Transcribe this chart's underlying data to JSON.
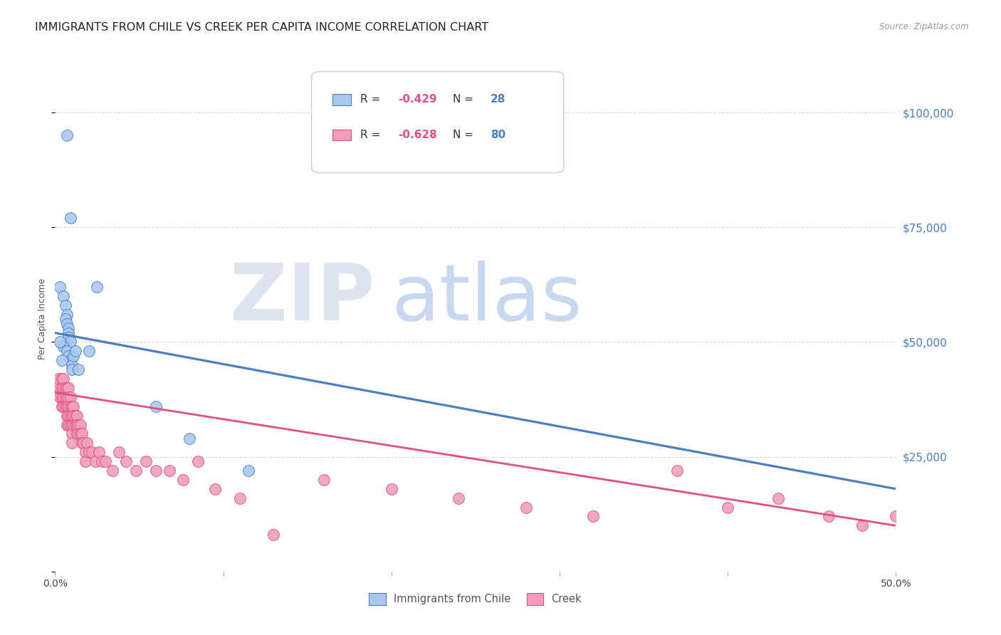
{
  "title": "IMMIGRANTS FROM CHILE VS CREEK PER CAPITA INCOME CORRELATION CHART",
  "source": "Source: ZipAtlas.com",
  "ylabel": "Per Capita Income",
  "xlim": [
    0.0,
    0.5
  ],
  "ylim": [
    0,
    110000
  ],
  "yticks": [
    0,
    25000,
    50000,
    75000,
    100000
  ],
  "ytick_labels": [
    "",
    "$25,000",
    "$50,000",
    "$75,000",
    "$100,000"
  ],
  "background_color": "#ffffff",
  "legend_label1": "Immigrants from Chile",
  "legend_label2": "Creek",
  "blue_color": "#4a7fc1",
  "pink_color": "#e05080",
  "scatter_blue_color": "#aac8ee",
  "scatter_pink_color": "#f0a0b8",
  "blue_scatter_x": [
    0.007,
    0.009,
    0.003,
    0.005,
    0.006,
    0.007,
    0.006,
    0.007,
    0.008,
    0.008,
    0.008,
    0.009,
    0.005,
    0.007,
    0.008,
    0.009,
    0.01,
    0.01,
    0.011,
    0.012,
    0.014,
    0.02,
    0.025,
    0.06,
    0.08,
    0.115,
    0.003,
    0.004
  ],
  "blue_scatter_y": [
    95000,
    77000,
    62000,
    60000,
    58000,
    56000,
    55000,
    54000,
    53000,
    52000,
    51000,
    50000,
    49000,
    48000,
    47000,
    46000,
    45000,
    44000,
    47000,
    48000,
    44000,
    48000,
    62000,
    36000,
    29000,
    22000,
    50000,
    46000
  ],
  "pink_scatter_x": [
    0.002,
    0.003,
    0.003,
    0.004,
    0.004,
    0.004,
    0.004,
    0.005,
    0.005,
    0.005,
    0.005,
    0.006,
    0.006,
    0.006,
    0.007,
    0.007,
    0.007,
    0.007,
    0.007,
    0.008,
    0.008,
    0.008,
    0.008,
    0.008,
    0.009,
    0.009,
    0.009,
    0.009,
    0.01,
    0.01,
    0.01,
    0.01,
    0.01,
    0.011,
    0.011,
    0.011,
    0.012,
    0.012,
    0.013,
    0.013,
    0.013,
    0.014,
    0.014,
    0.015,
    0.015,
    0.016,
    0.016,
    0.017,
    0.018,
    0.018,
    0.019,
    0.02,
    0.022,
    0.024,
    0.026,
    0.028,
    0.03,
    0.034,
    0.038,
    0.042,
    0.048,
    0.054,
    0.06,
    0.068,
    0.076,
    0.085,
    0.095,
    0.11,
    0.13,
    0.16,
    0.2,
    0.24,
    0.28,
    0.32,
    0.37,
    0.4,
    0.43,
    0.46,
    0.48,
    0.5
  ],
  "pink_scatter_y": [
    42000,
    40000,
    38000,
    42000,
    40000,
    38000,
    36000,
    42000,
    40000,
    38000,
    36000,
    40000,
    38000,
    36000,
    40000,
    38000,
    36000,
    34000,
    32000,
    40000,
    38000,
    36000,
    34000,
    32000,
    38000,
    36000,
    34000,
    32000,
    36000,
    34000,
    32000,
    30000,
    28000,
    36000,
    34000,
    32000,
    34000,
    32000,
    34000,
    32000,
    30000,
    32000,
    30000,
    32000,
    30000,
    30000,
    28000,
    28000,
    26000,
    24000,
    28000,
    26000,
    26000,
    24000,
    26000,
    24000,
    24000,
    22000,
    26000,
    24000,
    22000,
    24000,
    22000,
    22000,
    20000,
    24000,
    18000,
    16000,
    8000,
    20000,
    18000,
    16000,
    14000,
    12000,
    22000,
    14000,
    16000,
    12000,
    10000,
    12000
  ],
  "blue_line_x": [
    0.0,
    0.5
  ],
  "blue_line_y": [
    52000,
    18000
  ],
  "pink_line_x": [
    0.0,
    0.5
  ],
  "pink_line_y": [
    39000,
    10000
  ],
  "grid_color": "#d8d8d8",
  "title_fontsize": 11.5,
  "axis_label_fontsize": 9,
  "tick_fontsize": 10,
  "right_tick_color": "#4a7fc1",
  "watermark_zip_color": "#dde4ef",
  "watermark_atlas_color": "#c8d8ee"
}
